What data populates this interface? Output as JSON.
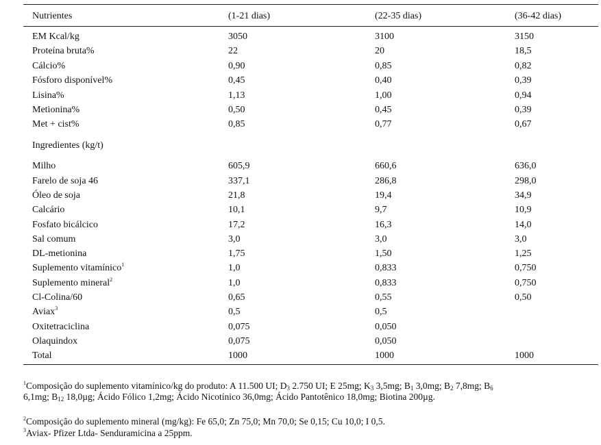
{
  "table": {
    "header": {
      "col0": "Nutrientes",
      "col1": "(1-21 dias)",
      "col2": "(22-35 dias)",
      "col3": "(36-42 dias)"
    },
    "nutrients": [
      {
        "label": "EM Kcal/kg",
        "v1": "3050",
        "v2": "3100",
        "v3": "3150"
      },
      {
        "label": "Proteína bruta%",
        "v1": "22",
        "v2": "20",
        "v3": "18,5"
      },
      {
        "label": "Cálcio%",
        "v1": "0,90",
        "v2": "0,85",
        "v3": "0,82"
      },
      {
        "label": "Fósforo disponível%",
        "v1": "0,45",
        "v2": "0,40",
        "v3": "0,39"
      },
      {
        "label": "Lisina%",
        "v1": "1,13",
        "v2": "1,00",
        "v3": "0,94"
      },
      {
        "label": "Metionina%",
        "v1": "0,50",
        "v2": "0,45",
        "v3": "0,39"
      },
      {
        "label": "Met + cist%",
        "v1": "0,85",
        "v2": "0,77",
        "v3": "0,67"
      }
    ],
    "ingredients_heading": "Ingredientes (kg/t)",
    "ingredients": [
      {
        "label": "Milho",
        "sup": "",
        "v1": "605,9",
        "v2": "660,6",
        "v3": "636,0"
      },
      {
        "label": "Farelo de soja 46",
        "sup": "",
        "v1": "337,1",
        "v2": "286,8",
        "v3": "298,0"
      },
      {
        "label": "Óleo de soja",
        "sup": "",
        "v1": "21,8",
        "v2": "19,4",
        "v3": "34,9"
      },
      {
        "label": "Calcário",
        "sup": "",
        "v1": "10,1",
        "v2": "9,7",
        "v3": "10,9"
      },
      {
        "label": "Fosfato bicálcico",
        "sup": "",
        "v1": "17,2",
        "v2": "16,3",
        "v3": "14,0"
      },
      {
        "label": "Sal comum",
        "sup": "",
        "v1": "3,0",
        "v2": "3,0",
        "v3": "3,0"
      },
      {
        "label": "DL-metionina",
        "sup": "",
        "v1": "1,75",
        "v2": "1,50",
        "v3": "1,25"
      },
      {
        "label": "Suplemento vitamínico",
        "sup": "1",
        "v1": "1,0",
        "v2": "0,833",
        "v3": "0,750"
      },
      {
        "label": "Suplemento mineral",
        "sup": "2",
        "v1": "1,0",
        "v2": "0,833",
        "v3": "0,750"
      },
      {
        "label": "Cl-Colina/60",
        "sup": "",
        "v1": "0,65",
        "v2": "0,55",
        "v3": "0,50"
      },
      {
        "label": "Aviax",
        "sup": "3",
        "v1": "0,5",
        "v2": "0,5",
        "v3": ""
      },
      {
        "label": "Oxitetraciclina",
        "sup": "",
        "v1": "0,075",
        "v2": "0,050",
        "v3": ""
      },
      {
        "label": "Olaquindox",
        "sup": "",
        "v1": "0,075",
        "v2": "0,050",
        "v3": ""
      },
      {
        "label": "Total",
        "sup": "",
        "v1": "1000",
        "v2": "1000",
        "v3": "1000"
      }
    ]
  },
  "footnotes": {
    "f1": {
      "marker": "1",
      "lead": "Composição do suplemento vitamínico/kg do produto: A 11.500 UI; D",
      "d3_sub": "3",
      "d3_val": " 2.750 UI; E 25mg; K",
      "k3_sub": "3",
      "k3_val": " 3,5mg; B",
      "b1_sub": "1",
      "b1_val": " 3,0mg; B",
      "b2_sub": "2",
      "b2_val": " 7,8mg; B",
      "b6_sub": "6",
      "b6_val": " 6,1mg; B",
      "b12_sub": "12",
      "tail": " 18,0µg; Ácido Fólico 1,2mg; Ácido Nicotínico 36,0mg; Ácido Pantotênico 18,0mg; Biotina 200µg."
    },
    "f2": {
      "marker": "2",
      "text": "Composição do suplemento mineral (mg/kg): Fe 65,0; Zn 75,0; Mn 70,0; Se 0,15; Cu 10,0; I 0,5."
    },
    "f3": {
      "marker": "3",
      "text": "Aviax- Pfizer Ltda- Senduramicina  a 25ppm."
    }
  }
}
